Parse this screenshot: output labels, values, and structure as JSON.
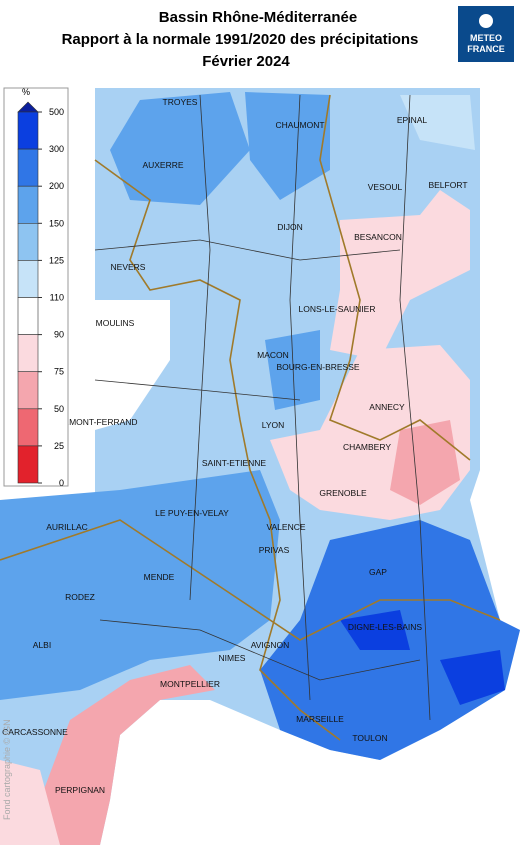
{
  "title": [
    "Bassin Rhône-Méditerranée",
    "Rapport à la normale 1991/2020 des précipitations",
    "Février 2024"
  ],
  "logo": [
    "METEO",
    "FRANCE"
  ],
  "legend": {
    "unit": "%",
    "ticks": [
      500,
      300,
      200,
      150,
      125,
      110,
      90,
      75,
      50,
      25,
      0
    ],
    "top_color": "#0b1f9c",
    "colors": [
      "#0b3fe0",
      "#3076e6",
      "#5da3ec",
      "#8ec4f1",
      "#c6e3f8",
      "#ffffff",
      "#fbdadf",
      "#f4a6ae",
      "#ee6872",
      "#e2222c"
    ]
  },
  "cities": [
    "TROYES",
    "CHAUMONT",
    "EPINAL",
    "AUXERRE",
    "VESOUL",
    "BELFORT",
    "DIJON",
    "BESANCON",
    "NEVERS",
    "LONS-LE-SAUNIER",
    "MOULINS",
    "MACON",
    "BOURG-EN-BRESSE",
    "ANNECY",
    "CLERMONT-FERRAND",
    "LYON",
    "CHAMBERY",
    "SAINT-ETIENNE",
    "GRENOBLE",
    "AURILLAC",
    "LE PUY-EN-VELAY",
    "VALENCE",
    "PRIVAS",
    "GAP",
    "MENDE",
    "RODEZ",
    "DIGNE-LES-BAINS",
    "AVIGNON",
    "ALBI",
    "NIMES",
    "MONTPELLIER",
    "MARSEILLE",
    "TOULON",
    "CARCASSONNE",
    "PERPIGNAN"
  ],
  "credit": "Fond cartographie © IGN"
}
